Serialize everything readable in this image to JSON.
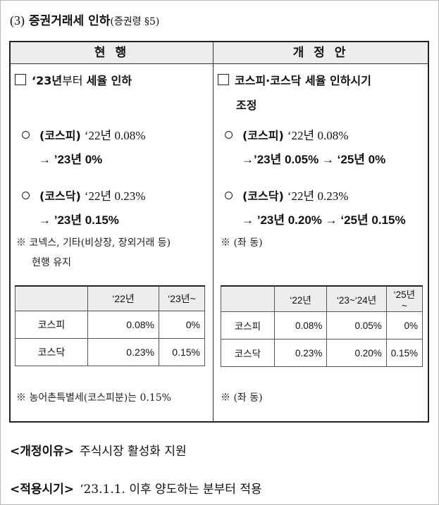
{
  "heading": {
    "num": "(3)",
    "title": "증권거래세 인하",
    "ref": "(증권령 §5)"
  },
  "headers": {
    "current": "현 행",
    "proposed": "개 정 안"
  },
  "current": {
    "box_year": "‘23년",
    "box_text1": "부터",
    "box_text2": "세율 인하",
    "kospi_label": "(코스피)",
    "kospi_from": "‘22년 0.08%",
    "kospi_to": "→ ’23년  0%",
    "kosdaq_label": "(코스닥)",
    "kosdaq_from": "‘22년 0.23%",
    "kosdaq_to": "→ ’23년 0.15%",
    "note_line1": "※ 코넥스, 기타(비상장, 장외거래 등)",
    "note_line2": "현행 유지",
    "table": {
      "headers": [
        "",
        "‘22년",
        "‘23년~"
      ],
      "rows": [
        [
          "코스피",
          "0.08%",
          "0%"
        ],
        [
          "코스닥",
          "0.23%",
          "0.15%"
        ]
      ]
    },
    "footnote": "※ 농어촌특별세(코스피분)는 0.15%"
  },
  "proposed": {
    "box_line1": "코스피·코스닥 세율 인하시기",
    "box_line2": "조정",
    "kospi_label": "(코스피)",
    "kospi_from": "‘22년 0.08%",
    "kospi_to": "→’23년 0.05% → ‘25년 0%",
    "kosdaq_label": "(코스닥)",
    "kosdaq_from": "‘22년 0.23%",
    "kosdaq_to": "→ ’23년 0.20% → ‘25년 0.15%",
    "note": "※ (좌 동)",
    "table": {
      "headers": [
        "",
        "‘22년",
        "‘23~‘24년",
        "‘25년~"
      ],
      "rows": [
        [
          "코스피",
          "0.08%",
          "0.05%",
          "0%"
        ],
        [
          "코스닥",
          "0.23%",
          "0.20%",
          "0.15%"
        ]
      ]
    },
    "footnote": "※ (좌 동)"
  },
  "footer": {
    "reason_tag": "<개정이유>",
    "reason_text": "주식시장 활성화 지원",
    "apply_tag": "<적용시기>",
    "apply_text": "‘23.1.1. 이후 양도하는 분부터 적용"
  }
}
